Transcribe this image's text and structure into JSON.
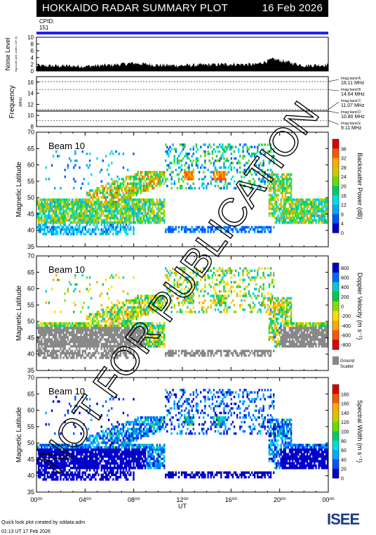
{
  "header": {
    "title": "HOKKAIDO RADAR SUMMARY PLOT",
    "date": "16 Feb 2026"
  },
  "cpid": {
    "label": "CPID:",
    "value": "151"
  },
  "noise_panel": {
    "ylabel": "Noise Level",
    "ylabel_sub": "log-scale (arb. units x 10^-6)",
    "ticks": [
      "0",
      "2",
      "4",
      "6",
      "8",
      "10"
    ]
  },
  "freq_panel": {
    "ylabel": "Frequency",
    "ylabel_sub": "(MHz)",
    "ticks": [
      "8",
      "10",
      "12",
      "14",
      "16"
    ],
    "bands": [
      {
        "name": "Imag band A",
        "freq": "16.11 MHz",
        "value": 16.11
      },
      {
        "name": "Imag band B",
        "freq": "14.64 MHz",
        "value": 14.64
      },
      {
        "name": "Imag band C",
        "freq": "11.07 MHz",
        "value": 11.07
      },
      {
        "name": "Imag band D",
        "freq": "10.80 MHz",
        "value": 10.8
      },
      {
        "name": "Imag band E",
        "freq": "9.11 MHz",
        "value": 9.11
      }
    ]
  },
  "panels": [
    {
      "beam": "Beam 10",
      "ylabel": "Magnetic Latitude",
      "cbar_label": "Backscatter Power (dB)",
      "cbar_ticks": [
        "0",
        "4",
        "8",
        "12",
        "16",
        "20",
        "24",
        "28",
        "32",
        "36"
      ]
    },
    {
      "beam": "Beam 10",
      "ylabel": "Magnetic Latitude",
      "cbar_label": "Doppler Velocity (m s⁻¹)",
      "cbar_ticks": [
        "800",
        "600",
        "400",
        "200",
        "0",
        "-200",
        "-400",
        "-600",
        "-800"
      ],
      "ground_label": "Ground Scatter"
    },
    {
      "beam": "Beam 10",
      "ylabel": "Magnetic Latitude",
      "cbar_label": "Spectral Width (m s⁻¹)",
      "cbar_ticks": [
        "0",
        "20",
        "40",
        "60",
        "80",
        "100",
        "120",
        "140",
        "160",
        "180"
      ]
    }
  ],
  "lat_ticks": [
    "35",
    "40",
    "45",
    "50",
    "55",
    "60",
    "65",
    "70"
  ],
  "time_ticks": [
    "00⁰⁰",
    "04⁰⁰",
    "08⁰⁰",
    "12⁰⁰",
    "16⁰⁰",
    "20⁰⁰",
    "00⁰⁰"
  ],
  "xlabel": "UT",
  "watermark": "NOT FOR PUBLICATION",
  "footer": {
    "line1": "Quick look plot created by sddata.adm",
    "line2": "01:13 UT 17 Feb 2026"
  },
  "logo": "ISEE",
  "colors": {
    "power": [
      "#0000cc",
      "#0055ff",
      "#00aaff",
      "#00dddd",
      "#00cc66",
      "#66dd00",
      "#cccc00",
      "#ffaa00",
      "#ff5500",
      "#dd0000"
    ],
    "velocity": [
      "#0000cc",
      "#0066ff",
      "#00cccc",
      "#00cc44",
      "#88dd00",
      "#ffdd00",
      "#ffaa00",
      "#ff5500",
      "#dd0000"
    ],
    "ground": "#888888",
    "cpid_bar": "#2222ee"
  },
  "chart_data": [
    {
      "type": "line",
      "title": "Noise Level",
      "x_range": [
        0,
        24
      ],
      "ylim": [
        0,
        10
      ],
      "x": [
        0,
        2,
        4,
        6,
        8,
        10,
        12,
        14,
        16,
        18,
        19.5,
        22,
        24
      ],
      "values": [
        1.5,
        1.5,
        1.4,
        1.7,
        2.3,
        1.7,
        1.6,
        1.8,
        2.0,
        1.9,
        3.5,
        1.6,
        1.8
      ]
    },
    {
      "type": "line",
      "title": "Frequency",
      "x_range": [
        0,
        24
      ],
      "ylim": [
        8,
        17
      ],
      "series": [
        {
          "name": "Imag band D",
          "x": [
            0,
            24
          ],
          "values": [
            10.8,
            10.8
          ]
        }
      ]
    },
    {
      "type": "heatmap",
      "title": "Backscatter Power (dB)",
      "x_range": [
        0,
        24
      ],
      "ylim": [
        35,
        70
      ],
      "clim": [
        0,
        36
      ]
    },
    {
      "type": "heatmap",
      "title": "Doppler Velocity",
      "x_range": [
        0,
        24
      ],
      "ylim": [
        35,
        70
      ],
      "clim": [
        -800,
        800
      ]
    },
    {
      "type": "heatmap",
      "title": "Spectral Width",
      "x_range": [
        0,
        24
      ],
      "ylim": [
        35,
        70
      ],
      "clim": [
        0,
        180
      ]
    }
  ]
}
